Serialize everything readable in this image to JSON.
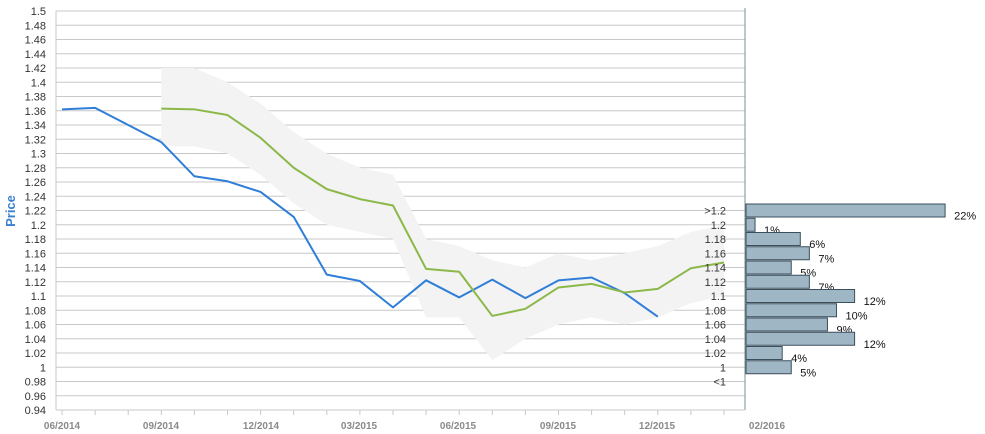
{
  "chart_data": [
    {
      "type": "line",
      "ylabel": "Price",
      "ylim": [
        0.94,
        1.5
      ],
      "y_ticks": [
        "1.5",
        "1.48",
        "1.46",
        "1.44",
        "1.42",
        "1.4",
        "1.38",
        "1.36",
        "1.34",
        "1.32",
        "1.3",
        "1.28",
        "1.26",
        "1.24",
        "1.22",
        "1.2",
        "1.18",
        "1.16",
        "1.14",
        "1.12",
        "1.1",
        "1.08",
        "1.06",
        "1.04",
        "1.02",
        "1",
        "0.98",
        "0.96",
        "0.94"
      ],
      "x_ticks": [
        "06/2014",
        "09/2014",
        "12/2014",
        "03/2015",
        "06/2015",
        "09/2015",
        "12/2015",
        "02/2016"
      ],
      "grid": true,
      "series": [
        {
          "color": "#2f7ed8",
          "x": [
            "2014-06",
            "2014-07",
            "2014-08",
            "2014-09",
            "2014-10",
            "2014-11",
            "2014-12",
            "2015-01",
            "2015-02",
            "2015-03",
            "2015-04",
            "2015-05",
            "2015-06",
            "2015-07",
            "2015-08",
            "2015-09",
            "2015-10",
            "2015-11",
            "2015-12"
          ],
          "y": [
            1.362,
            1.364,
            1.34,
            1.316,
            1.268,
            1.261,
            1.246,
            1.211,
            1.13,
            1.121,
            1.084,
            1.122,
            1.098,
            1.123,
            1.097,
            1.122,
            1.126,
            1.104,
            1.071
          ]
        },
        {
          "color": "#8bb849",
          "x": [
            "2014-09",
            "2014-10",
            "2014-11",
            "2014-12",
            "2015-01",
            "2015-02",
            "2015-03",
            "2015-04",
            "2015-05",
            "2015-06",
            "2015-07",
            "2015-08",
            "2015-09",
            "2015-10",
            "2015-11",
            "2015-12",
            "2016-01",
            "2016-02"
          ],
          "y": [
            1.363,
            1.362,
            1.354,
            1.322,
            1.28,
            1.25,
            1.236,
            1.227,
            1.138,
            1.134,
            1.072,
            1.082,
            1.112,
            1.117,
            1.105,
            1.11,
            1.139,
            1.147
          ]
        }
      ],
      "band": {
        "color": "#f3f3f3",
        "x": [
          "2014-09",
          "2014-10",
          "2014-11",
          "2014-12",
          "2015-01",
          "2015-02",
          "2015-03",
          "2015-04",
          "2015-05",
          "2015-06",
          "2015-07",
          "2015-08",
          "2015-09",
          "2015-10",
          "2015-11",
          "2015-12",
          "2016-01",
          "2016-02"
        ],
        "upper": [
          1.42,
          1.42,
          1.4,
          1.37,
          1.33,
          1.3,
          1.28,
          1.27,
          1.18,
          1.17,
          1.15,
          1.14,
          1.16,
          1.15,
          1.16,
          1.17,
          1.19,
          1.2
        ],
        "lower": [
          1.31,
          1.31,
          1.3,
          1.27,
          1.23,
          1.2,
          1.19,
          1.18,
          1.07,
          1.07,
          1.01,
          1.04,
          1.06,
          1.07,
          1.06,
          1.07,
          1.09,
          1.1
        ]
      }
    },
    {
      "type": "bar",
      "orientation": "horizontal",
      "bar_color": "#9fb6c5",
      "categories": [
        ">1.2",
        "1.2",
        "1.18",
        "1.16",
        "1.14",
        "1.12",
        "1.1",
        "1.08",
        "1.06",
        "1.04",
        "1.02",
        "1",
        "<1"
      ],
      "values": [
        22,
        1,
        6,
        7,
        5,
        7,
        12,
        10,
        9,
        12,
        4,
        5,
        0
      ],
      "labels": [
        "22%",
        "1%",
        "6%",
        "7%",
        "5%",
        "7%",
        "12%",
        "10%",
        "9%",
        "12%",
        "4%",
        "5%",
        ""
      ]
    }
  ]
}
